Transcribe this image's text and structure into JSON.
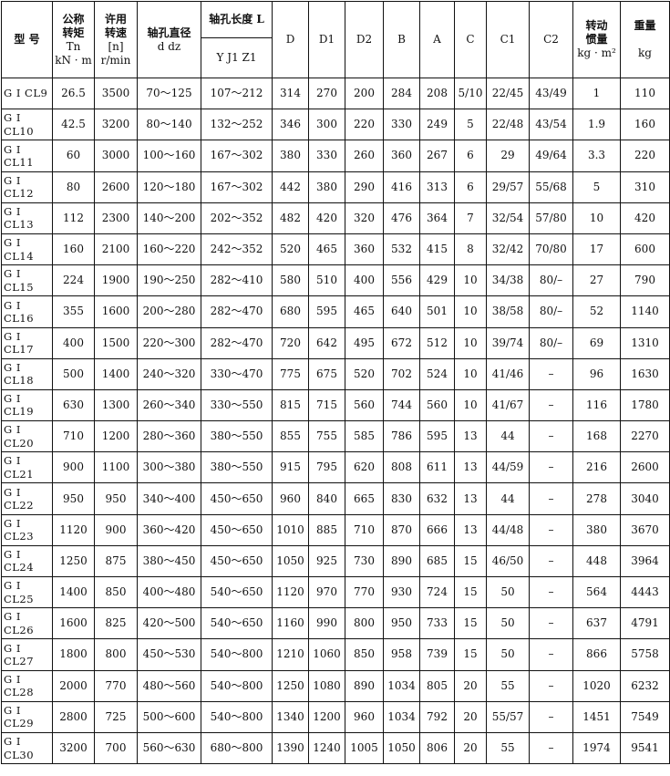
{
  "headers": {
    "model": "型 号",
    "torque": [
      "公称",
      "转矩",
      "Tn",
      "kN · m"
    ],
    "speed": [
      "许用",
      "转速",
      "[n]",
      "r/min"
    ],
    "bore_dia": [
      "轴孔直径",
      "d dz"
    ],
    "bore_len": "轴孔长度 L",
    "bore_len_sub": "Y J1 Z1",
    "D": "D",
    "D1": "D1",
    "D2": "D2",
    "B": "B",
    "A": "A",
    "C": "C",
    "C1": "C1",
    "C2": "C2",
    "inertia": [
      "转动",
      "惯量",
      "kg · m²"
    ],
    "weight": [
      "重量",
      "kg"
    ]
  },
  "rows": [
    [
      "G I CL9",
      "26.5",
      "3500",
      "70～125",
      "107～212",
      "314",
      "270",
      "200",
      "284",
      "208",
      "5/10",
      "22/45",
      "43/49",
      "1",
      "110"
    ],
    [
      "G I CL10",
      "42.5",
      "3200",
      "80～140",
      "132～252",
      "346",
      "300",
      "220",
      "330",
      "249",
      "5",
      "22/48",
      "43/54",
      "1.9",
      "160"
    ],
    [
      "G I CL11",
      "60",
      "3000",
      "100～160",
      "167～302",
      "380",
      "330",
      "260",
      "360",
      "267",
      "6",
      "29",
      "49/64",
      "3.3",
      "220"
    ],
    [
      "G I CL12",
      "80",
      "2600",
      "120～180",
      "167～302",
      "442",
      "380",
      "290",
      "416",
      "313",
      "6",
      "29/57",
      "55/68",
      "5",
      "310"
    ],
    [
      "G I CL13",
      "112",
      "2300",
      "140～200",
      "202～352",
      "482",
      "420",
      "320",
      "476",
      "364",
      "7",
      "32/54",
      "57/80",
      "10",
      "420"
    ],
    [
      "G I CL14",
      "160",
      "2100",
      "160～220",
      "242～352",
      "520",
      "465",
      "360",
      "532",
      "415",
      "8",
      "32/42",
      "70/80",
      "17",
      "600"
    ],
    [
      "G I CL15",
      "224",
      "1900",
      "190～250",
      "282～410",
      "580",
      "510",
      "400",
      "556",
      "429",
      "10",
      "34/38",
      "80/–",
      "27",
      "790"
    ],
    [
      "G I CL16",
      "355",
      "1600",
      "200～280",
      "282～470",
      "680",
      "595",
      "465",
      "640",
      "501",
      "10",
      "38/58",
      "80/–",
      "52",
      "1140"
    ],
    [
      "G I CL17",
      "400",
      "1500",
      "220～300",
      "282～470",
      "720",
      "642",
      "495",
      "672",
      "512",
      "10",
      "39/74",
      "80/–",
      "69",
      "1310"
    ],
    [
      "G I CL18",
      "500",
      "1400",
      "240～320",
      "330～470",
      "775",
      "675",
      "520",
      "702",
      "524",
      "10",
      "41/46",
      "–",
      "96",
      "1630"
    ],
    [
      "G I CL19",
      "630",
      "1300",
      "260～340",
      "330～550",
      "815",
      "715",
      "560",
      "744",
      "560",
      "10",
      "41/67",
      "–",
      "116",
      "1780"
    ],
    [
      "G I CL20",
      "710",
      "1200",
      "280～360",
      "380～550",
      "855",
      "755",
      "585",
      "786",
      "595",
      "13",
      "44",
      "–",
      "168",
      "2270"
    ],
    [
      "G I CL21",
      "900",
      "1100",
      "300～380",
      "380～550",
      "915",
      "795",
      "620",
      "808",
      "611",
      "13",
      "44/59",
      "–",
      "216",
      "2600"
    ],
    [
      "G I CL22",
      "950",
      "950",
      "340～400",
      "450～650",
      "960",
      "840",
      "665",
      "830",
      "632",
      "13",
      "44",
      "–",
      "278",
      "3040"
    ],
    [
      "G I CL23",
      "1120",
      "900",
      "360～420",
      "450～650",
      "1010",
      "885",
      "710",
      "870",
      "666",
      "13",
      "44/48",
      "–",
      "380",
      "3670"
    ],
    [
      "G I CL24",
      "1250",
      "875",
      "380～450",
      "450～650",
      "1050",
      "925",
      "730",
      "890",
      "685",
      "15",
      "46/50",
      "–",
      "448",
      "3964"
    ],
    [
      "G I CL25",
      "1400",
      "850",
      "400～480",
      "540～650",
      "1120",
      "970",
      "770",
      "930",
      "724",
      "15",
      "50",
      "–",
      "564",
      "4443"
    ],
    [
      "G I CL26",
      "1600",
      "825",
      "420～500",
      "540～650",
      "1160",
      "990",
      "800",
      "950",
      "733",
      "15",
      "50",
      "–",
      "637",
      "4791"
    ],
    [
      "G I CL27",
      "1800",
      "800",
      "450～530",
      "540～800",
      "1210",
      "1060",
      "850",
      "958",
      "739",
      "15",
      "50",
      "–",
      "866",
      "5758"
    ],
    [
      "G I CL28",
      "2000",
      "770",
      "480～560",
      "540～800",
      "1250",
      "1080",
      "890",
      "1034",
      "805",
      "20",
      "55",
      "–",
      "1020",
      "6232"
    ],
    [
      "G I CL29",
      "2800",
      "725",
      "500～600",
      "540～800",
      "1340",
      "1200",
      "960",
      "1034",
      "792",
      "20",
      "55/57",
      "–",
      "1451",
      "7549"
    ],
    [
      "G I CL30",
      "3200",
      "700",
      "560～630",
      "680～800",
      "1390",
      "1240",
      "1005",
      "1050",
      "806",
      "20",
      "55",
      "–",
      "1974",
      "9541"
    ]
  ]
}
